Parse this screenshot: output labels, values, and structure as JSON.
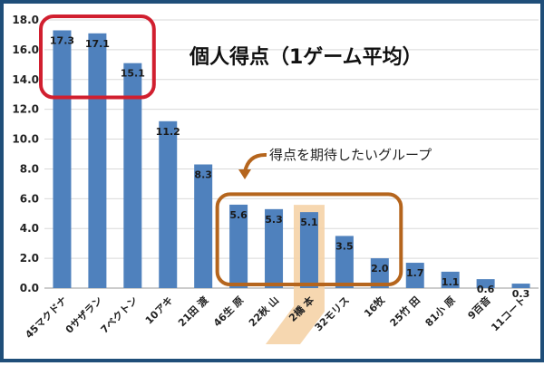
{
  "chart_data": {
    "type": "bar",
    "title": "個人得点（1ゲーム平均）",
    "categories": [
      "45マクドナ",
      "0サザラン",
      "7ベクトン",
      "10アキ",
      "21田 渡",
      "46生 原",
      "22秋 山",
      "2橋 本",
      "32モリス",
      "16牧",
      "25竹 田",
      "81小 原",
      "9百音",
      "11コート"
    ],
    "values": [
      17.3,
      17.1,
      15.1,
      11.2,
      8.3,
      5.6,
      5.3,
      5.1,
      3.5,
      2.0,
      1.7,
      1.1,
      0.6,
      0.3
    ],
    "value_labels": [
      "17.3",
      "17.1",
      "15.1",
      "11.2",
      "8.3",
      "5.6",
      "5.3",
      "5.1",
      "3.5",
      "2.0",
      "1.7",
      "1.1",
      "0.6",
      "0.3"
    ],
    "ylim": [
      0,
      18
    ],
    "yticks": [
      "0.0",
      "2.0",
      "4.0",
      "6.0",
      "8.0",
      "10.0",
      "12.0",
      "14.0",
      "16.0",
      "18.0"
    ],
    "grid": true,
    "highlight_index": 7,
    "groups": [
      {
        "name": "top",
        "from": 0,
        "to": 2
      },
      {
        "name": "expected",
        "from": 5,
        "to": 9
      }
    ],
    "annotations": [
      "得点を期待したいグループ"
    ]
  },
  "colors": {
    "bar": "#4f81bd",
    "highlight": "#f5d3a7",
    "red_box": "#d11f2f",
    "brown_box": "#b5651d",
    "frame": "#1f4e79"
  }
}
